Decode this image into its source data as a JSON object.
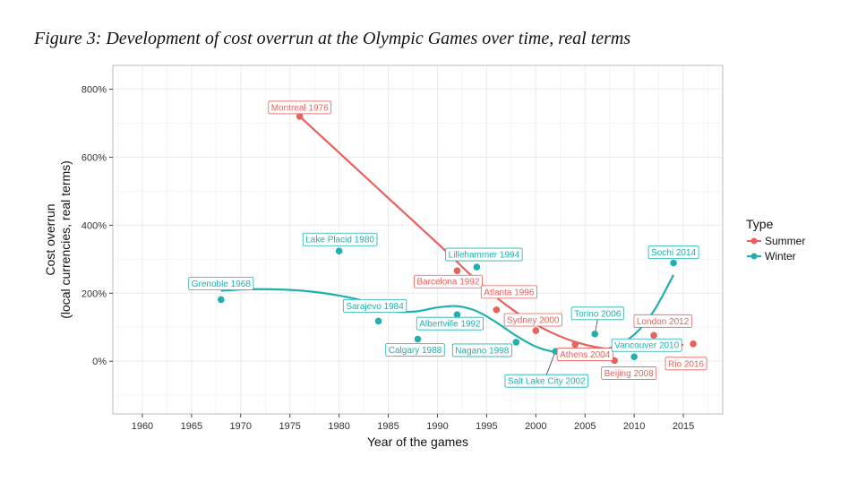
{
  "figure_title": "Figure 3: Development of cost overrun at the Olympic Games over time, real terms",
  "colors": {
    "summer": "#e8625c",
    "winter": "#1fb0b0",
    "panel_bg": "#ffffff",
    "grid": "#ebebeb",
    "border": "#bbbbbb"
  },
  "chart_data": {
    "type": "scatter",
    "title": "Figure 3: Development of cost overrun at the Olympic Games over time, real terms",
    "xlabel": "Year of the games",
    "ylabel": [
      "Cost overrun",
      "(local currencies, real terms)"
    ],
    "xlim": [
      1957,
      2019
    ],
    "ylim": [
      -155,
      870
    ],
    "x_ticks": [
      1960,
      1965,
      1970,
      1975,
      1980,
      1985,
      1990,
      1995,
      2000,
      2005,
      2010,
      2015
    ],
    "y_ticks": [
      0,
      200,
      400,
      600,
      800
    ],
    "y_tick_labels": [
      "0%",
      "200%",
      "400%",
      "600%",
      "800%"
    ],
    "grid": true,
    "legend": {
      "title": "Type",
      "placement": "right",
      "entries": [
        "Summer",
        "Winter"
      ]
    },
    "series": [
      {
        "name": "Summer",
        "color": "#e8625c",
        "points": [
          {
            "x": 1976,
            "y": 720,
            "label": "Montreal 1976"
          },
          {
            "x": 1992,
            "y": 266,
            "label": "Barcelona 1992"
          },
          {
            "x": 1996,
            "y": 151,
            "label": "Atlanta 1996"
          },
          {
            "x": 2000,
            "y": 90,
            "label": "Sydney 2000"
          },
          {
            "x": 2004,
            "y": 49,
            "label": "Athens 2004"
          },
          {
            "x": 2008,
            "y": 2,
            "label": "Beijing 2008"
          },
          {
            "x": 2012,
            "y": 76,
            "label": "London 2012"
          },
          {
            "x": 2016,
            "y": 51,
            "label": "Rio 2016"
          }
        ],
        "smooth": [
          [
            1976,
            720
          ],
          [
            1979,
            640
          ],
          [
            1982,
            560
          ],
          [
            1985,
            480
          ],
          [
            1988,
            400
          ],
          [
            1991,
            320
          ],
          [
            1994,
            237
          ],
          [
            1997,
            165
          ],
          [
            2000,
            108
          ],
          [
            2003,
            67
          ],
          [
            2006,
            42
          ],
          [
            2009,
            33
          ],
          [
            2012,
            38
          ],
          [
            2015,
            48
          ]
        ]
      },
      {
        "name": "Winter",
        "color": "#1fb0b0",
        "points": [
          {
            "x": 1968,
            "y": 181,
            "label": "Grenoble 1968"
          },
          {
            "x": 1980,
            "y": 324,
            "label": "Lake Placid 1980"
          },
          {
            "x": 1984,
            "y": 118,
            "label": "Sarajevo 1984"
          },
          {
            "x": 1988,
            "y": 65,
            "label": "Calgary 1988"
          },
          {
            "x": 1992,
            "y": 137,
            "label": "Albertville 1992"
          },
          {
            "x": 1994,
            "y": 277,
            "label": "Lillehammer 1994"
          },
          {
            "x": 1998,
            "y": 56,
            "label": "Nagano 1998"
          },
          {
            "x": 2002,
            "y": 29,
            "label": "Salt Lake City 2002"
          },
          {
            "x": 2006,
            "y": 80,
            "label": "Torino 2006"
          },
          {
            "x": 2010,
            "y": 13,
            "label": "Vancouver 2010"
          },
          {
            "x": 2014,
            "y": 289,
            "label": "Sochi 2014"
          }
        ],
        "smooth": [
          [
            1968,
            207
          ],
          [
            1970,
            211
          ],
          [
            1972,
            212
          ],
          [
            1974,
            211
          ],
          [
            1976,
            208
          ],
          [
            1978,
            202
          ],
          [
            1980,
            193
          ],
          [
            1982,
            181
          ],
          [
            1984,
            162
          ],
          [
            1986,
            146
          ],
          [
            1988,
            147
          ],
          [
            1990,
            158
          ],
          [
            1992,
            162
          ],
          [
            1994,
            147
          ],
          [
            1996,
            114
          ],
          [
            1998,
            75
          ],
          [
            2000,
            43
          ],
          [
            2002,
            27
          ],
          [
            2004,
            24
          ],
          [
            2006,
            28
          ],
          [
            2008,
            44
          ],
          [
            2010,
            78
          ],
          [
            2012,
            148
          ],
          [
            2014,
            254
          ]
        ]
      }
    ]
  }
}
